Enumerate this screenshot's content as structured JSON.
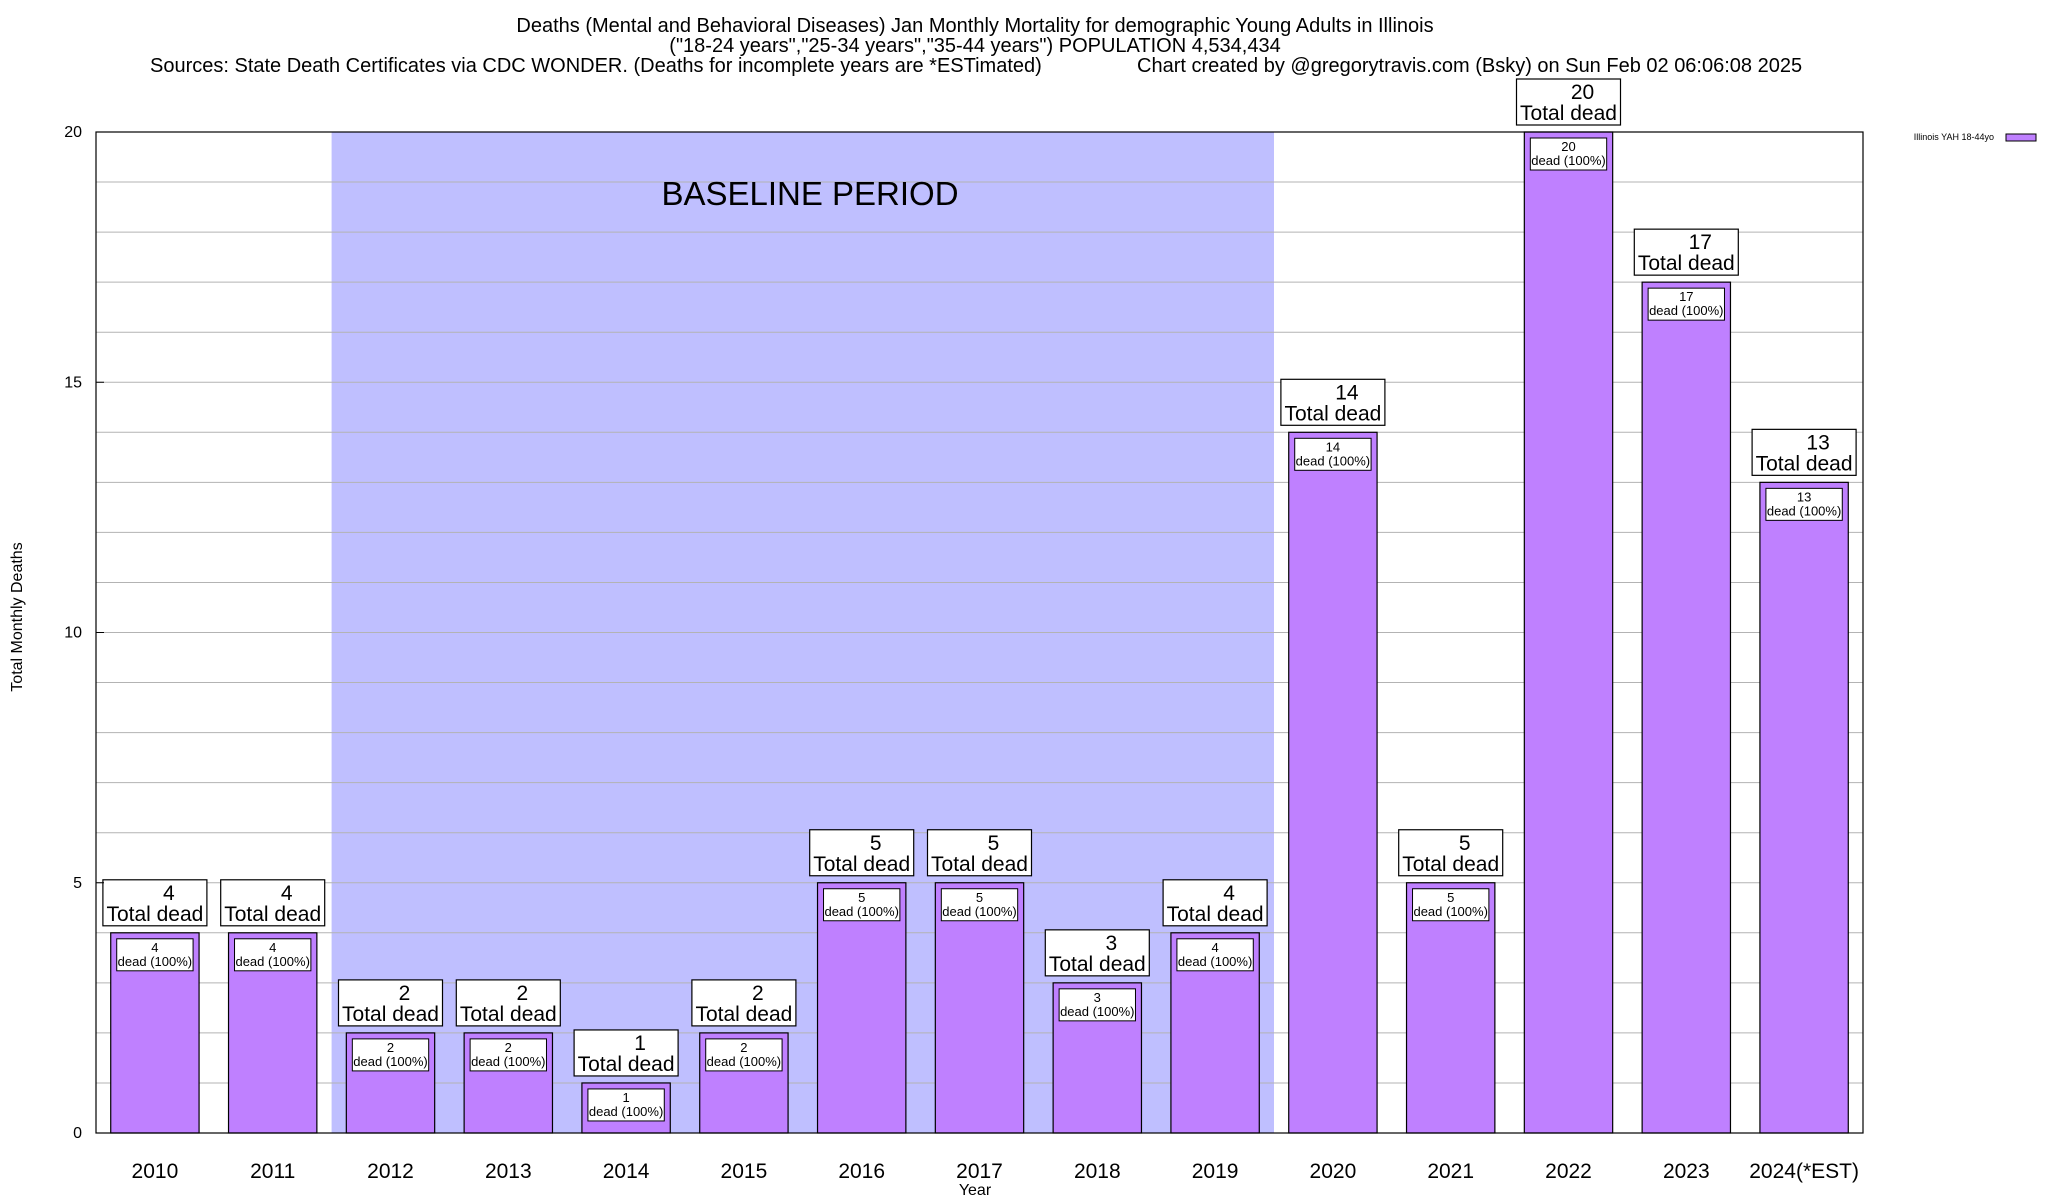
{
  "chart_data": {
    "type": "bar",
    "title_lines": [
      "Deaths (Mental and Behavioral Diseases) Jan Monthly Mortality for demographic Young Adults in Illinois",
      "(\"18-24 years\",\"25-34 years\",\"35-44 years\") POPULATION 4,534,434"
    ],
    "source_text": "Sources: State Death Certificates via CDC WONDER. (Deaths for incomplete years are *ESTimated)",
    "credit_text": "Chart created by @gregorytravis.com (Bsky) on Sun Feb 02 06:06:08 2025",
    "xlabel": "Year",
    "ylabel": "Total Monthly Deaths",
    "ylim": [
      0,
      20
    ],
    "yticks": [
      0,
      5,
      10,
      15,
      20
    ],
    "grid": true,
    "legend": {
      "position": "top-right",
      "entries": [
        {
          "name": "Illinois YAH 18-44yo",
          "color": "#bf80ff"
        }
      ]
    },
    "bar_color": "#bf80ff",
    "baseline": {
      "label": "BASELINE PERIOD",
      "from": "2012",
      "to": "2019",
      "color": "#bfbfff"
    },
    "big_label_suffix": "Total dead",
    "small_label_suffix": "dead (100%)",
    "categories": [
      "2010",
      "2011",
      "2012",
      "2013",
      "2014",
      "2015",
      "2016",
      "2017",
      "2018",
      "2019",
      "2020",
      "2021",
      "2022",
      "2023",
      "2024(*EST)"
    ],
    "series": [
      {
        "name": "Illinois YAH 18-44yo",
        "values": [
          4,
          4,
          2,
          2,
          1,
          2,
          5,
          5,
          3,
          4,
          14,
          5,
          20,
          17,
          13
        ]
      }
    ]
  }
}
